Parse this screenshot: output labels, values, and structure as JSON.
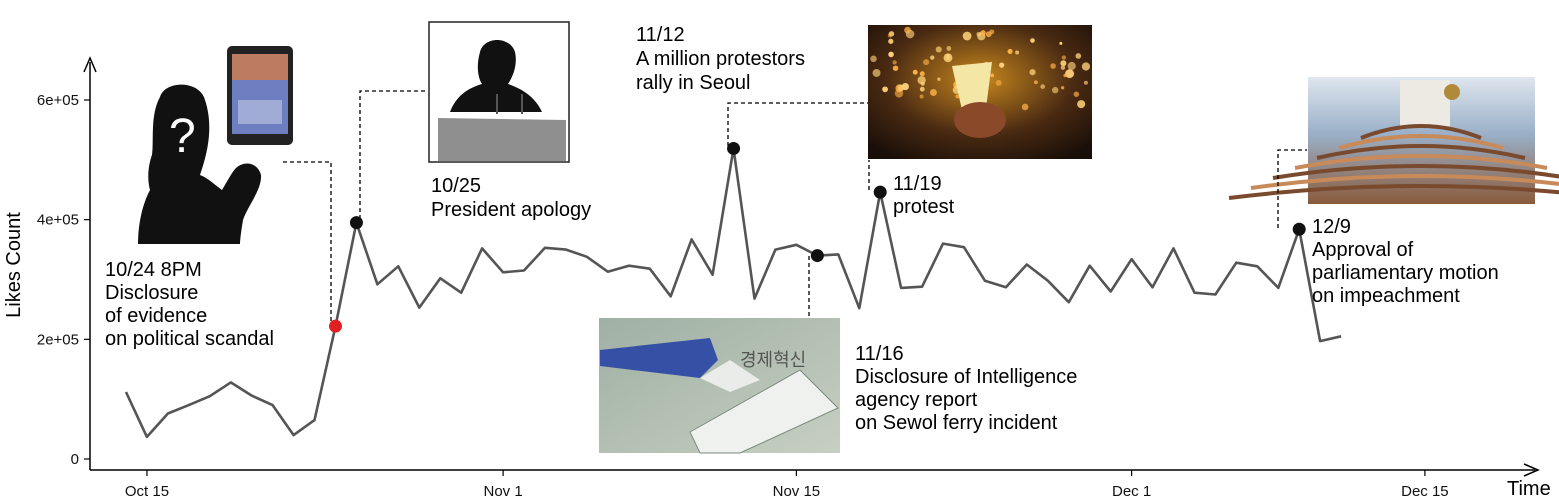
{
  "chart_data": {
    "type": "line",
    "ylabel": "Likes Count",
    "xlabel": "Time",
    "ylim": [
      0,
      640000
    ],
    "x_tick_labels": [
      "Oct 15",
      "Nov 1",
      "Nov 15",
      "Dec 1",
      "Dec 15"
    ],
    "y_tick_labels": [
      "0",
      "2e+05",
      "4e+05",
      "6e+05"
    ],
    "y_tick_values": [
      0,
      200000,
      400000,
      600000
    ],
    "line_color": "#555555",
    "series": [
      {
        "x": [
          "Oct 14",
          "Oct 15",
          "Oct 16",
          "Oct 17",
          "Oct 18",
          "Oct 19",
          "Oct 20",
          "Oct 21",
          "Oct 22",
          "Oct 23",
          "Oct 24",
          "Oct 25",
          "Oct 26",
          "Oct 27",
          "Oct 28",
          "Oct 29",
          "Oct 30",
          "Oct 31",
          "Nov 1",
          "Nov 2",
          "Nov 3",
          "Nov 4",
          "Nov 5",
          "Nov 6",
          "Nov 7",
          "Nov 8",
          "Nov 9",
          "Nov 10",
          "Nov 11",
          "Nov 12",
          "Nov 13",
          "Nov 14",
          "Nov 15",
          "Nov 16",
          "Nov 17",
          "Nov 18",
          "Nov 19",
          "Nov 20",
          "Nov 21",
          "Nov 22",
          "Nov 23",
          "Nov 24",
          "Nov 25",
          "Nov 26",
          "Nov 27",
          "Nov 28",
          "Nov 29",
          "Nov 30",
          "Dec 1",
          "Dec 2",
          "Dec 3",
          "Dec 4",
          "Dec 5",
          "Dec 6",
          "Dec 7",
          "Dec 8",
          "Dec 9",
          "Dec 10",
          "Dec 11"
        ],
        "values": [
          112000,
          37000,
          76000,
          90000,
          105000,
          128000,
          106000,
          90000,
          40000,
          65000,
          222000,
          395000,
          292000,
          322000,
          253000,
          302000,
          278000,
          352000,
          312000,
          315000,
          353000,
          350000,
          338000,
          313000,
          323000,
          318000,
          272000,
          367000,
          308000,
          519000,
          268000,
          350000,
          358000,
          340000,
          342000,
          252000,
          446000,
          286000,
          288000,
          360000,
          354000,
          298000,
          287000,
          325000,
          298000,
          262000,
          323000,
          280000,
          334000,
          287000,
          352000,
          278000,
          275000,
          328000,
          322000,
          286000,
          384000,
          197000,
          205000
        ]
      }
    ],
    "highlighted_points": [
      {
        "x": "Oct 24",
        "value": 222000,
        "color": "#e02020"
      },
      {
        "x": "Oct 25",
        "value": 395000,
        "color": "#111111"
      },
      {
        "x": "Nov 12",
        "value": 519000,
        "color": "#111111"
      },
      {
        "x": "Nov 16",
        "value": 340000,
        "color": "#111111"
      },
      {
        "x": "Nov 19",
        "value": 446000,
        "color": "#111111"
      },
      {
        "x": "Dec 9",
        "value": 384000,
        "color": "#111111"
      }
    ]
  },
  "annotations": {
    "oct24": [
      "10/24 8PM",
      "Disclosure",
      "of evidence",
      "on political scandal"
    ],
    "oct25": [
      "10/25",
      "President apology"
    ],
    "nov12": [
      "11/12",
      "A million protestors",
      "rally in Seoul"
    ],
    "nov16": [
      "11/16",
      "Disclosure of Intelligence",
      "agency report",
      "on Sewol ferry incident"
    ],
    "nov19": [
      "11/19",
      "protest"
    ],
    "dec9": [
      "12/9",
      "Approval of",
      "parliamentary motion",
      "on impeachment"
    ]
  },
  "images": {
    "oct24": "silhouette with question mark holding tablet",
    "oct25": "silhouette at podium",
    "nov12": "candlelight crowd photo",
    "nov16": "ferry and report photo",
    "dec9": "national assembly hall photo"
  }
}
